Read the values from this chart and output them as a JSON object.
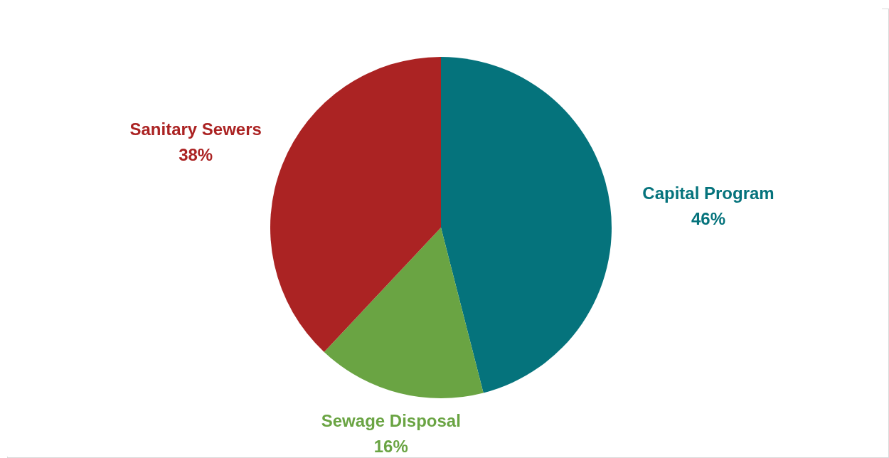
{
  "chart_data": {
    "type": "pie",
    "categories": [
      "Capital Program",
      "Sewage Disposal",
      "Sanitary Sewers"
    ],
    "values": [
      46,
      16,
      38
    ],
    "colors": [
      "#05737c",
      "#6aa443",
      "#ab2323"
    ],
    "value_labels": [
      "46%",
      "16%",
      "38%"
    ],
    "legend": false
  }
}
